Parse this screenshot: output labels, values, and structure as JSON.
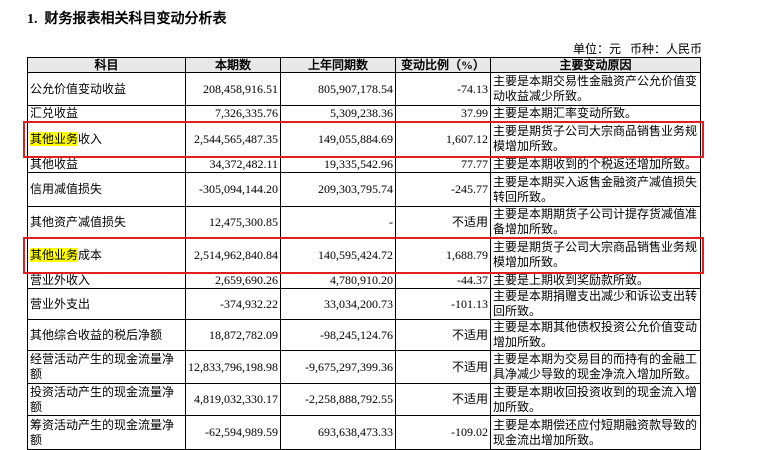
{
  "header": {
    "title": "1.  财务报表相关科目变动分析表",
    "unit": "单位：元   币种：人民币"
  },
  "table": {
    "columns": [
      "科目",
      "本期数",
      "上年同期数",
      "变动比例（%）",
      "主要变动原因"
    ],
    "rows": [
      [
        "公允价值变动收益",
        "208,458,916.51",
        "805,907,178.54",
        "-74.13",
        "主要是本期交易性金融资产公允价值变动收益减少所致。"
      ],
      [
        "汇兑收益",
        "7,326,335.76",
        "5,309,238.36",
        "37.99",
        "主要是本期汇率变动所致。"
      ],
      [
        [
          "其他业务",
          "收入"
        ],
        "2,544,565,487.35",
        "149,055,884.69",
        "1,607.12",
        "主要是期货子公司大宗商品销售业务规模增加所致。"
      ],
      [
        "其他收益",
        "34,372,482.11",
        "19,335,542.96",
        "77.77",
        "主要是本期收到的个税返还增加所致。"
      ],
      [
        "信用减值损失",
        "-305,094,144.20",
        "209,303,795.74",
        "-245.77",
        "主要是本期买入返售金融资产减值损失转回所致。"
      ],
      [
        "其他资产减值损失",
        "12,475,300.85",
        "-",
        "不适用",
        "主要是本期期货子公司计提存货减值准备增加所致。"
      ],
      [
        [
          "其他业务",
          "成本"
        ],
        "2,514,962,840.84",
        "140,595,424.72",
        "1,688.79",
        "主要是期货子公司大宗商品销售业务规模增加所致。"
      ],
      [
        "营业外收入",
        "2,659,690.26",
        "4,780,910.20",
        "-44.37",
        "主要是上期收到奖励款所致。"
      ],
      [
        "营业外支出",
        "-374,932.22",
        "33,034,200.73",
        "-101.13",
        "主要是本期捐赠支出减少和诉讼支出转回所致。"
      ],
      [
        "其他综合收益的税后净额",
        "18,872,782.09",
        "-98,245,124.76",
        "不适用",
        "主要是本期其他债权投资公允价值变动增加所致。"
      ],
      [
        "经营活动产生的现金流量净额",
        "12,833,796,198.98",
        "-9,675,297,399.36",
        "不适用",
        "主要是本期为交易目的而持有的金融工具净减少导致的现金净流入增加所致。"
      ],
      [
        "投资活动产生的现金流量净额",
        "4,819,032,330.17",
        "-2,258,888,792.55",
        "不适用",
        "主要是本期收回投资收到的现金流入增加所致。"
      ],
      [
        "筹资活动产生的现金流量净额",
        "-62,594,989.59",
        "693,638,473.33",
        "-109.02",
        "主要是本期偿还应付短期融资款导致的现金流出增加所致。"
      ]
    ]
  }
}
